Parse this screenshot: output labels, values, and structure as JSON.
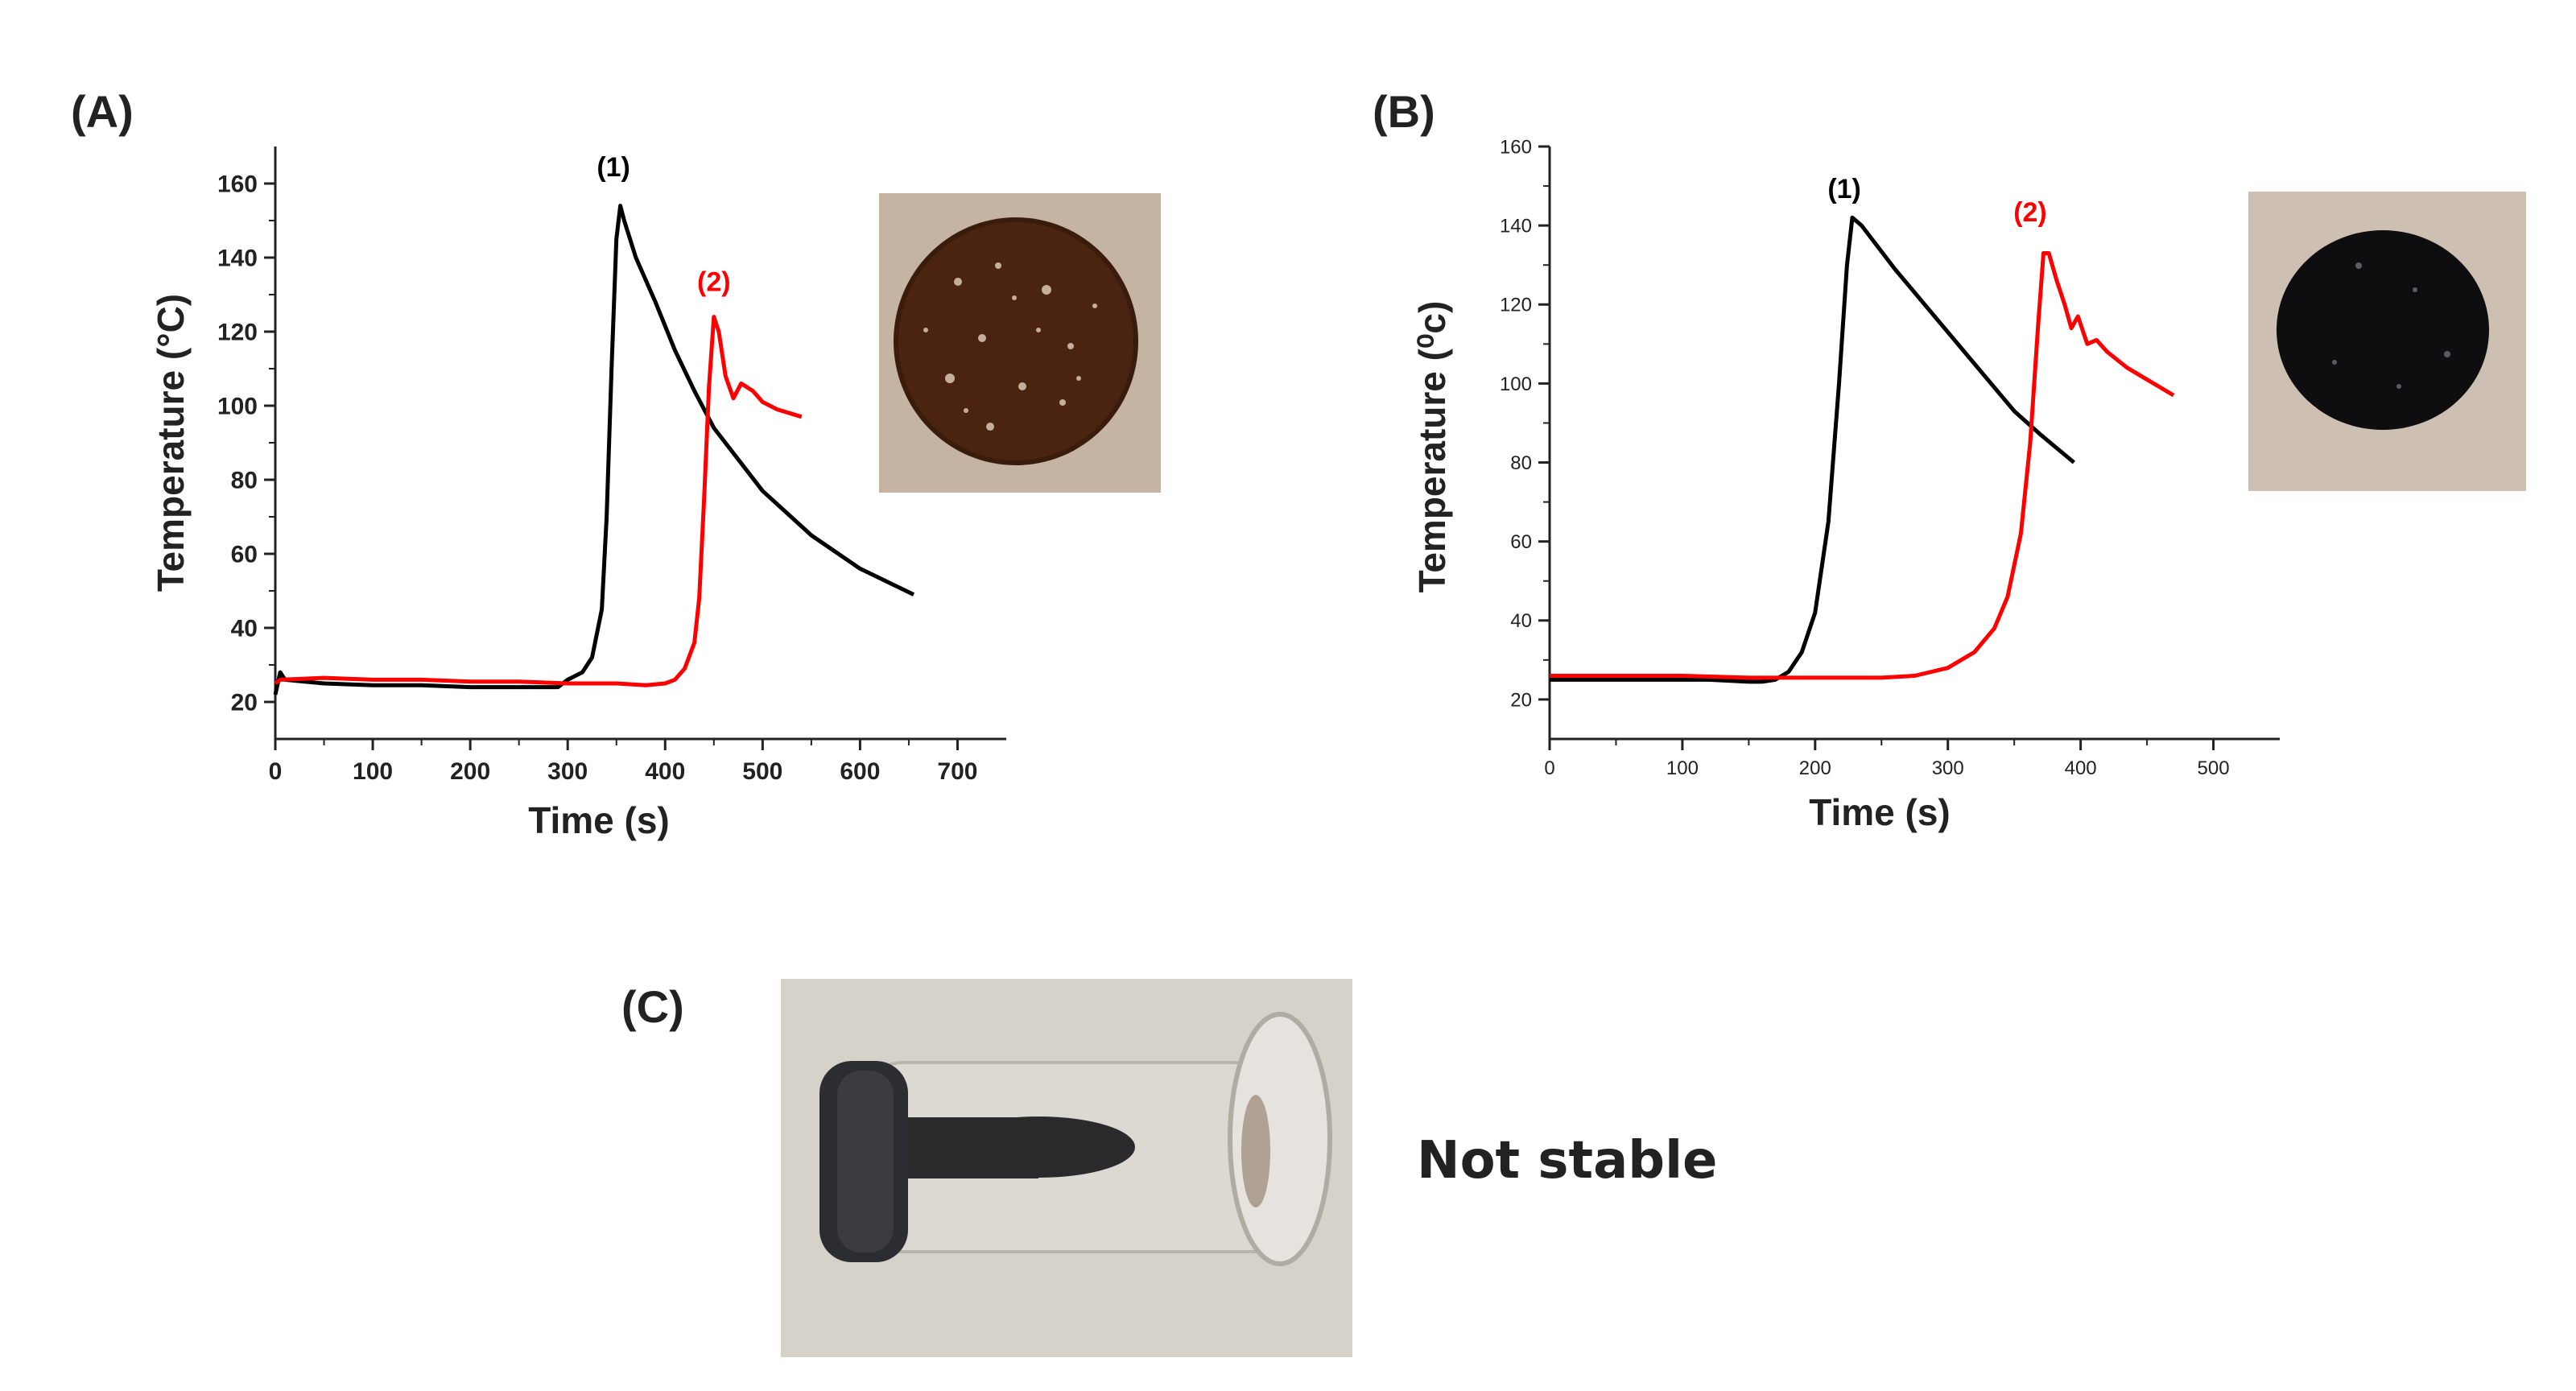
{
  "panels": {
    "A": {
      "label": "(A)"
    },
    "B": {
      "label": "(B)"
    },
    "C": {
      "label": "(C)",
      "status": "Not stable"
    }
  },
  "chart_data": [
    {
      "id": "A",
      "type": "line",
      "title": "",
      "xlabel": "Time (s)",
      "ylabel": "Temperature (°C)",
      "xlim": [
        0,
        750
      ],
      "ylim": [
        10,
        170
      ],
      "xticks": [
        0,
        100,
        200,
        300,
        400,
        500,
        600,
        700
      ],
      "yticks": [
        20,
        40,
        60,
        80,
        100,
        120,
        140,
        160
      ],
      "grid": false,
      "series": [
        {
          "name": "(1)",
          "color": "#000000",
          "x": [
            0,
            5,
            10,
            50,
            100,
            150,
            200,
            250,
            290,
            300,
            315,
            325,
            335,
            340,
            345,
            350,
            354,
            358,
            370,
            390,
            410,
            430,
            450,
            500,
            550,
            600,
            655
          ],
          "y": [
            22,
            28,
            26,
            25,
            24.5,
            24.5,
            24,
            24,
            24,
            26,
            28,
            32,
            45,
            70,
            110,
            145,
            154,
            150,
            140,
            128,
            115,
            104,
            94,
            77,
            65,
            56,
            49
          ]
        },
        {
          "name": "(2)",
          "color": "#ff0000",
          "x": [
            0,
            5,
            50,
            100,
            150,
            200,
            250,
            300,
            350,
            380,
            400,
            410,
            420,
            430,
            435,
            440,
            445,
            450,
            455,
            462,
            470,
            478,
            490,
            500,
            515,
            540
          ],
          "y": [
            25,
            26,
            26.5,
            26,
            26,
            25.5,
            25.5,
            25,
            25,
            24.5,
            25,
            26,
            29,
            36,
            48,
            75,
            105,
            124,
            120,
            108,
            102,
            106,
            104,
            101,
            99,
            97
          ]
        }
      ],
      "annotations": [
        {
          "text": "(1)",
          "x": 347,
          "y": 162,
          "color": "#000000"
        },
        {
          "text": "(2)",
          "x": 450,
          "y": 131,
          "color": "#ff0000"
        }
      ]
    },
    {
      "id": "B",
      "type": "line",
      "title": "",
      "xlabel": "Time (s)",
      "ylabel": "Temperature (⁰c)",
      "xlim": [
        0,
        550
      ],
      "ylim": [
        10,
        160
      ],
      "xticks": [
        0,
        100,
        200,
        300,
        400,
        500
      ],
      "yticks": [
        20,
        40,
        60,
        80,
        100,
        120,
        140,
        160
      ],
      "grid": false,
      "series": [
        {
          "name": "(1)",
          "color": "#000000",
          "x": [
            0,
            40,
            80,
            120,
            150,
            160,
            170,
            180,
            190,
            200,
            210,
            218,
            224,
            228,
            235,
            260,
            290,
            320,
            350,
            370,
            395
          ],
          "y": [
            25,
            25,
            25,
            25,
            24.5,
            24.5,
            25,
            27,
            32,
            42,
            65,
            100,
            130,
            142,
            140,
            129,
            117,
            105,
            93,
            87,
            80
          ]
        },
        {
          "name": "(2)",
          "color": "#ff0000",
          "x": [
            0,
            50,
            100,
            150,
            200,
            250,
            275,
            300,
            320,
            335,
            345,
            355,
            362,
            368,
            372,
            376,
            382,
            388,
            393,
            398,
            405,
            412,
            420,
            435,
            455,
            470
          ],
          "y": [
            26,
            26,
            26,
            25.5,
            25.5,
            25.5,
            26,
            28,
            32,
            38,
            46,
            62,
            85,
            115,
            133,
            133,
            126,
            120,
            114,
            117,
            110,
            111,
            108,
            104,
            100,
            97
          ]
        }
      ],
      "annotations": [
        {
          "text": "(1)",
          "x": 222,
          "y": 147,
          "color": "#000000"
        },
        {
          "text": "(2)",
          "x": 362,
          "y": 141,
          "color": "#ff0000"
        }
      ]
    }
  ]
}
